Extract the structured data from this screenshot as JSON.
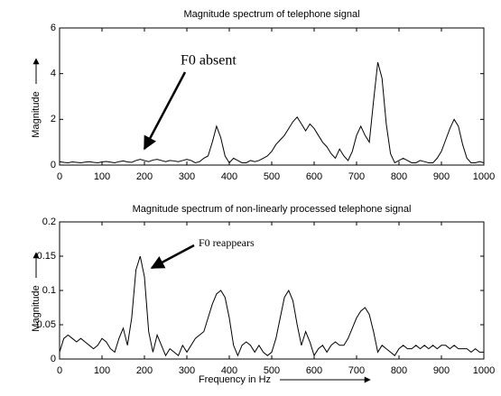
{
  "chart_data": [
    {
      "type": "line",
      "title": "Magnitude spectrum of telephone signal",
      "ylabel": "Magnitude",
      "color": "#000000",
      "annotation": "F0 absent",
      "x": [
        0,
        10,
        20,
        30,
        40,
        50,
        60,
        70,
        80,
        90,
        100,
        110,
        120,
        130,
        140,
        150,
        160,
        170,
        180,
        190,
        200,
        210,
        220,
        230,
        240,
        250,
        260,
        270,
        280,
        290,
        300,
        310,
        320,
        330,
        340,
        350,
        360,
        370,
        380,
        390,
        400,
        410,
        420,
        430,
        440,
        450,
        460,
        470,
        480,
        490,
        500,
        510,
        520,
        530,
        540,
        550,
        560,
        570,
        580,
        590,
        600,
        610,
        620,
        630,
        640,
        650,
        660,
        670,
        680,
        690,
        700,
        710,
        720,
        730,
        740,
        750,
        760,
        770,
        780,
        790,
        800,
        810,
        820,
        830,
        840,
        850,
        860,
        870,
        880,
        890,
        900,
        910,
        920,
        930,
        940,
        950,
        960,
        970,
        980,
        990,
        1000
      ],
      "values": [
        0.15,
        0.12,
        0.1,
        0.14,
        0.12,
        0.1,
        0.13,
        0.15,
        0.12,
        0.1,
        0.14,
        0.16,
        0.13,
        0.1,
        0.15,
        0.18,
        0.14,
        0.12,
        0.2,
        0.25,
        0.2,
        0.15,
        0.22,
        0.25,
        0.2,
        0.15,
        0.2,
        0.18,
        0.15,
        0.2,
        0.25,
        0.2,
        0.1,
        0.15,
        0.3,
        0.4,
        1.0,
        1.7,
        1.2,
        0.4,
        0.1,
        0.3,
        0.2,
        0.1,
        0.1,
        0.2,
        0.15,
        0.2,
        0.3,
        0.4,
        0.6,
        0.9,
        1.1,
        1.3,
        1.6,
        1.9,
        2.1,
        1.8,
        1.5,
        1.8,
        1.6,
        1.3,
        1.0,
        0.8,
        0.5,
        0.3,
        0.7,
        0.4,
        0.2,
        0.6,
        1.3,
        1.7,
        1.3,
        1.0,
        2.8,
        4.5,
        3.8,
        1.8,
        0.5,
        0.1,
        0.2,
        0.3,
        0.2,
        0.1,
        0.1,
        0.2,
        0.15,
        0.1,
        0.1,
        0.3,
        0.6,
        1.1,
        1.6,
        2.0,
        1.7,
        0.9,
        0.3,
        0.1,
        0.1,
        0.15,
        0.1
      ],
      "xlim": [
        0,
        1000
      ],
      "xticks": [
        0,
        100,
        200,
        300,
        400,
        500,
        600,
        700,
        800,
        900,
        1000
      ],
      "ylim": [
        0,
        6
      ],
      "yticks": [
        0,
        2,
        4,
        6
      ]
    },
    {
      "type": "line",
      "title": "Magnitude spectrum of non-linearly processed telephone signal",
      "ylabel": "Magnitude",
      "xlabel": "Frequency in Hz",
      "color": "#000000",
      "annotation": "F0 reappears",
      "x": [
        0,
        10,
        20,
        30,
        40,
        50,
        60,
        70,
        80,
        90,
        100,
        110,
        120,
        130,
        140,
        150,
        160,
        170,
        180,
        190,
        200,
        210,
        220,
        230,
        240,
        250,
        260,
        270,
        280,
        290,
        300,
        310,
        320,
        330,
        340,
        350,
        360,
        370,
        380,
        390,
        400,
        410,
        420,
        430,
        440,
        450,
        460,
        470,
        480,
        490,
        500,
        510,
        520,
        530,
        540,
        550,
        560,
        570,
        580,
        590,
        600,
        610,
        620,
        630,
        640,
        650,
        660,
        670,
        680,
        690,
        700,
        710,
        720,
        730,
        740,
        750,
        760,
        770,
        780,
        790,
        800,
        810,
        820,
        830,
        840,
        850,
        860,
        870,
        880,
        890,
        900,
        910,
        920,
        930,
        940,
        950,
        960,
        970,
        980,
        990,
        1000
      ],
      "values": [
        0.01,
        0.03,
        0.035,
        0.03,
        0.025,
        0.03,
        0.025,
        0.02,
        0.015,
        0.02,
        0.03,
        0.025,
        0.015,
        0.01,
        0.03,
        0.045,
        0.02,
        0.06,
        0.13,
        0.15,
        0.12,
        0.04,
        0.01,
        0.035,
        0.02,
        0.005,
        0.015,
        0.01,
        0.005,
        0.02,
        0.01,
        0.02,
        0.03,
        0.035,
        0.04,
        0.06,
        0.08,
        0.095,
        0.1,
        0.09,
        0.06,
        0.02,
        0.005,
        0.02,
        0.025,
        0.02,
        0.01,
        0.02,
        0.01,
        0.005,
        0.01,
        0.03,
        0.06,
        0.09,
        0.1,
        0.085,
        0.05,
        0.02,
        0.04,
        0.025,
        0.005,
        0.015,
        0.02,
        0.01,
        0.02,
        0.025,
        0.02,
        0.02,
        0.03,
        0.045,
        0.06,
        0.07,
        0.075,
        0.065,
        0.04,
        0.01,
        0.02,
        0.015,
        0.01,
        0.005,
        0.015,
        0.02,
        0.015,
        0.015,
        0.02,
        0.015,
        0.02,
        0.015,
        0.02,
        0.015,
        0.02,
        0.02,
        0.015,
        0.02,
        0.015,
        0.015,
        0.015,
        0.01,
        0.015,
        0.01,
        0.01
      ],
      "xlim": [
        0,
        1000
      ],
      "xticks": [
        0,
        100,
        200,
        300,
        400,
        500,
        600,
        700,
        800,
        900,
        1000
      ],
      "ylim": [
        0,
        0.2
      ],
      "yticks": [
        0,
        0.05,
        0.1,
        0.15,
        0.2
      ]
    }
  ]
}
